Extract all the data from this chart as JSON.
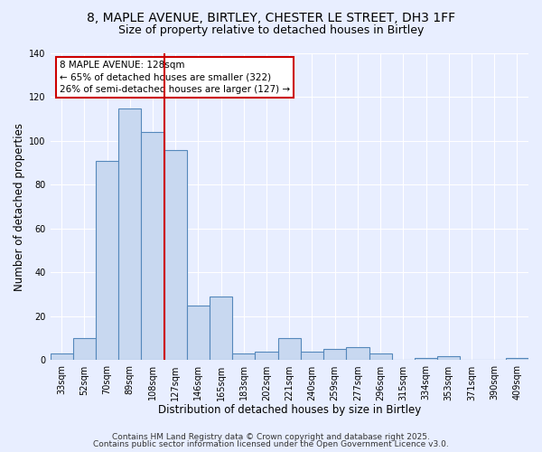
{
  "title": "8, MAPLE AVENUE, BIRTLEY, CHESTER LE STREET, DH3 1FF",
  "subtitle": "Size of property relative to detached houses in Birtley",
  "xlabel": "Distribution of detached houses by size in Birtley",
  "ylabel": "Number of detached properties",
  "bar_values": [
    3,
    10,
    91,
    115,
    104,
    96,
    25,
    29,
    3,
    4,
    10,
    4,
    5,
    6,
    3,
    0,
    1,
    2,
    0,
    0,
    1
  ],
  "bar_labels": [
    "33sqm",
    "52sqm",
    "70sqm",
    "89sqm",
    "108sqm",
    "127sqm",
    "146sqm",
    "165sqm",
    "183sqm",
    "202sqm",
    "221sqm",
    "240sqm",
    "259sqm",
    "277sqm",
    "296sqm",
    "315sqm",
    "334sqm",
    "353sqm",
    "371sqm",
    "390sqm",
    "409sqm"
  ],
  "bar_color": "#c8d8f0",
  "bar_edge_color": "#5588bb",
  "vline_color": "#cc0000",
  "annotation_title": "8 MAPLE AVENUE: 128sqm",
  "annotation_line1": "← 65% of detached houses are smaller (322)",
  "annotation_line2": "26% of semi-detached houses are larger (127) →",
  "annotation_box_color": "#ffffff",
  "annotation_box_edge": "#cc0000",
  "ylim": [
    0,
    140
  ],
  "yticks": [
    0,
    20,
    40,
    60,
    80,
    100,
    120,
    140
  ],
  "bg_color": "#e8eeff",
  "footer1": "Contains HM Land Registry data © Crown copyright and database right 2025.",
  "footer2": "Contains public sector information licensed under the Open Government Licence v3.0.",
  "title_fontsize": 10,
  "subtitle_fontsize": 9,
  "axis_label_fontsize": 8.5,
  "tick_fontsize": 7,
  "footer_fontsize": 6.5
}
